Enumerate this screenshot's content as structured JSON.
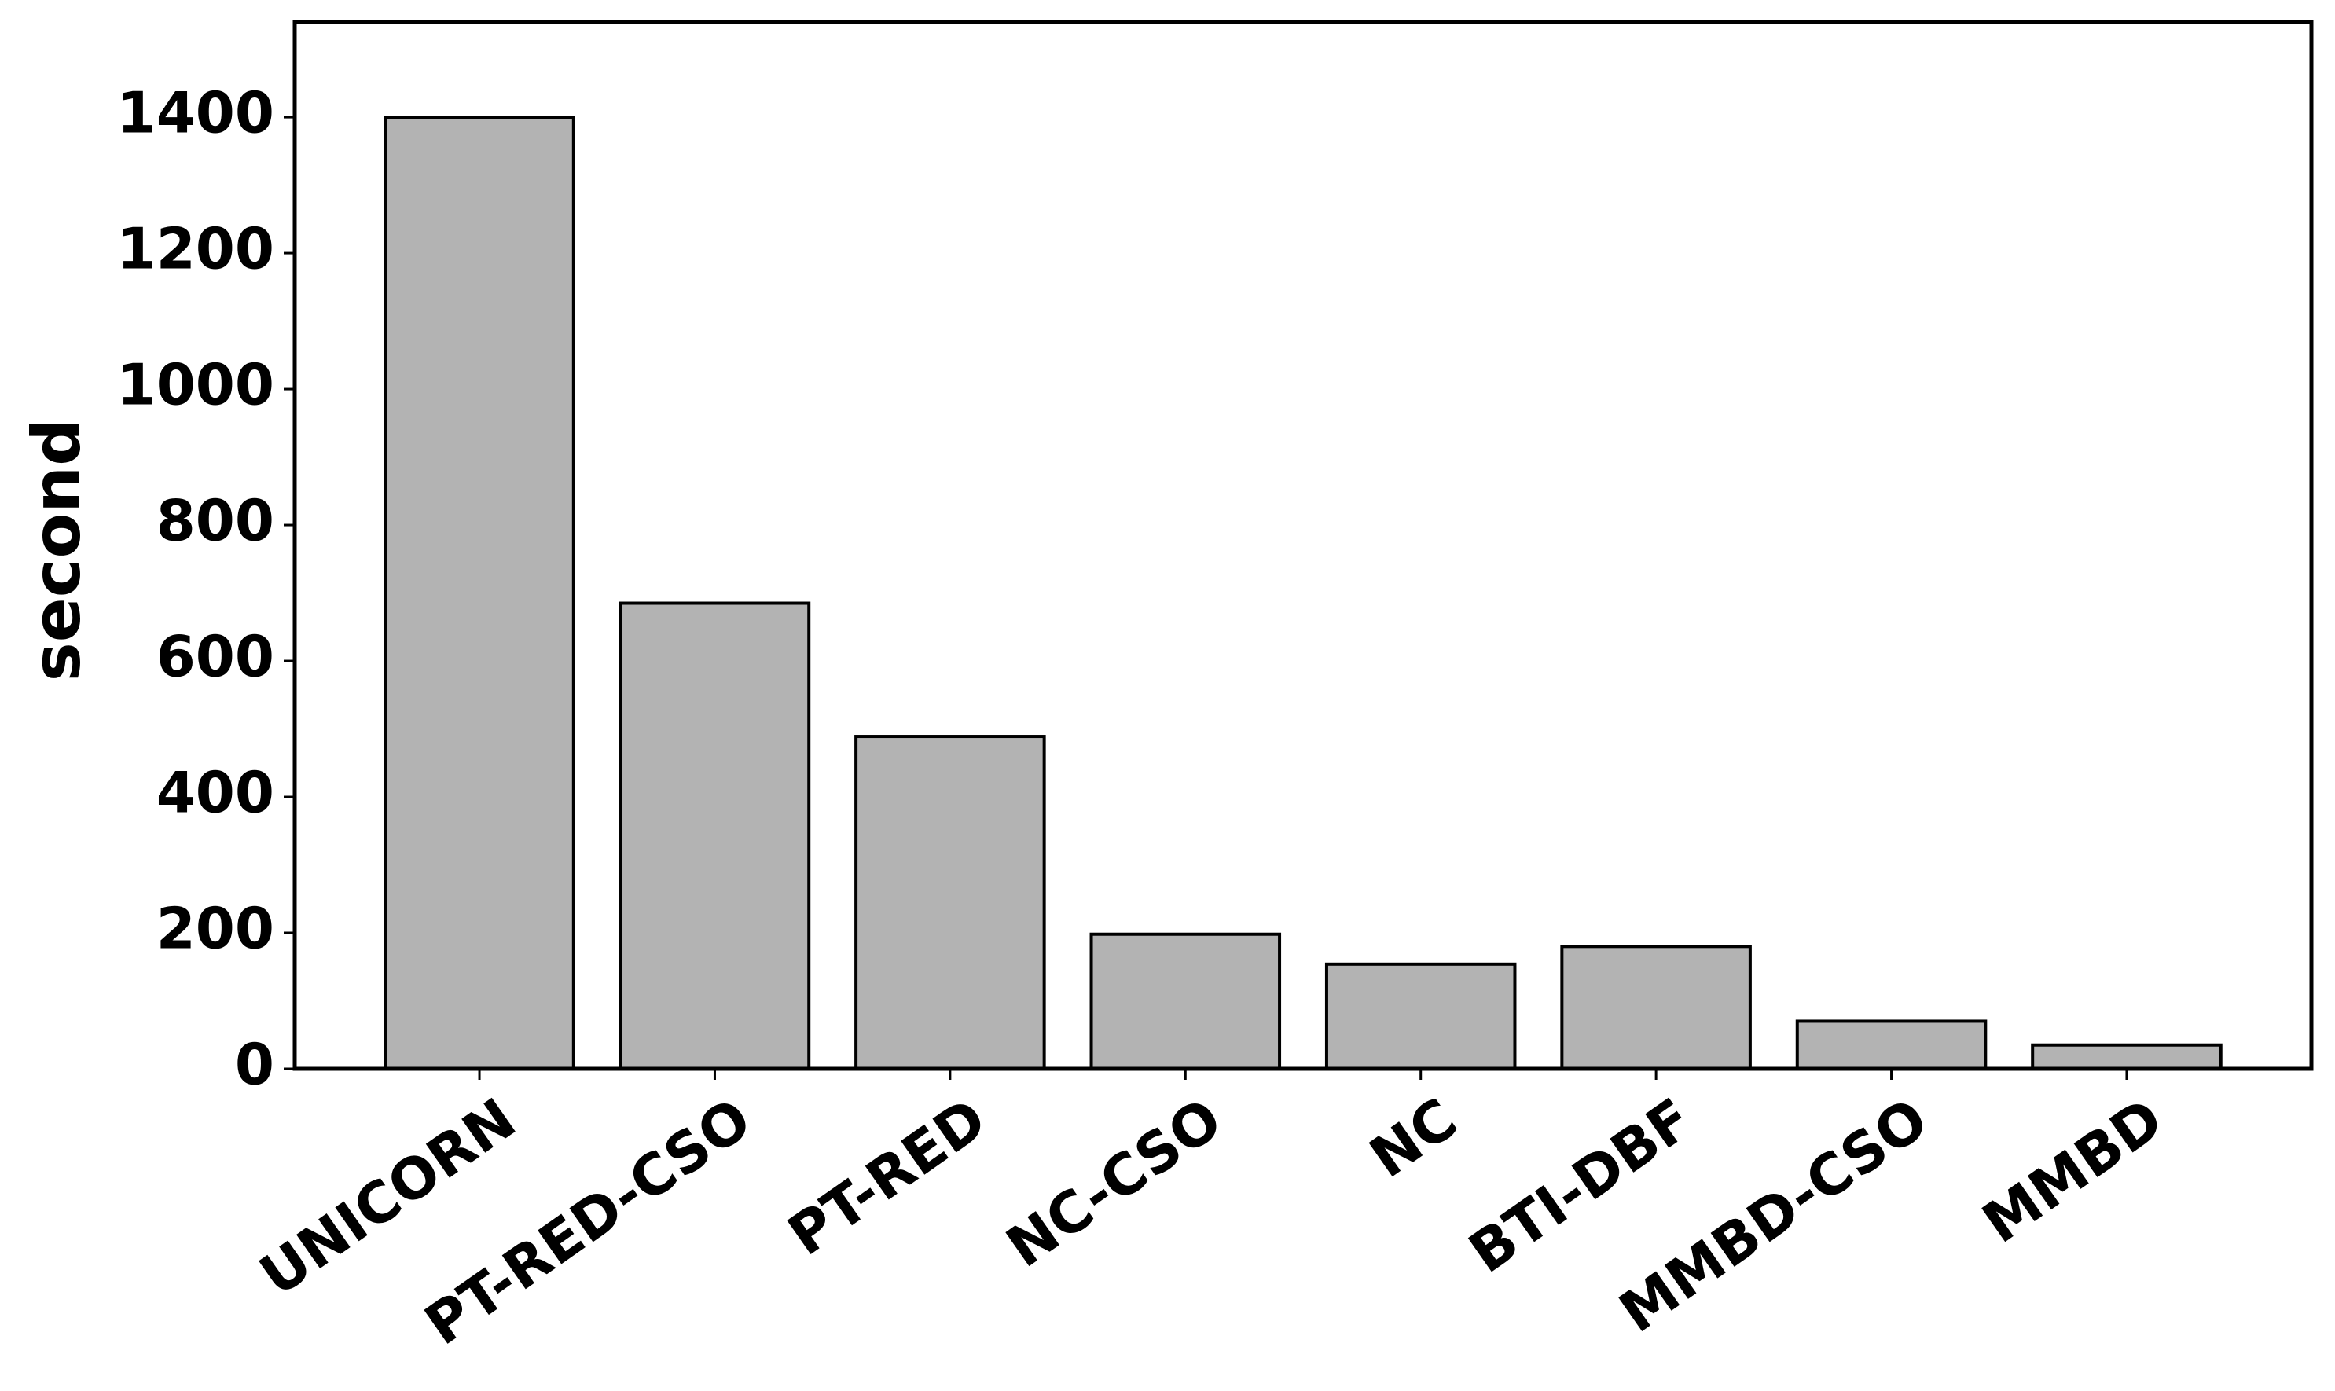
{
  "chart_data": {
    "type": "bar",
    "y_label": "second",
    "categories": [
      "UNICORN",
      "PT-RED-CSO",
      "PT-RED",
      "NC-CSO",
      "NC",
      "BTI-DBF",
      "MMBD-CSO",
      "MMBD"
    ],
    "values": [
      1400,
      685,
      489,
      198,
      154,
      180,
      70,
      35
    ],
    "color": "#b3b3b3",
    "ylim": [
      0,
      1540
    ],
    "yticks": [
      0,
      200,
      400,
      600,
      800,
      1000,
      1200,
      1400
    ],
    "grid": false
  }
}
